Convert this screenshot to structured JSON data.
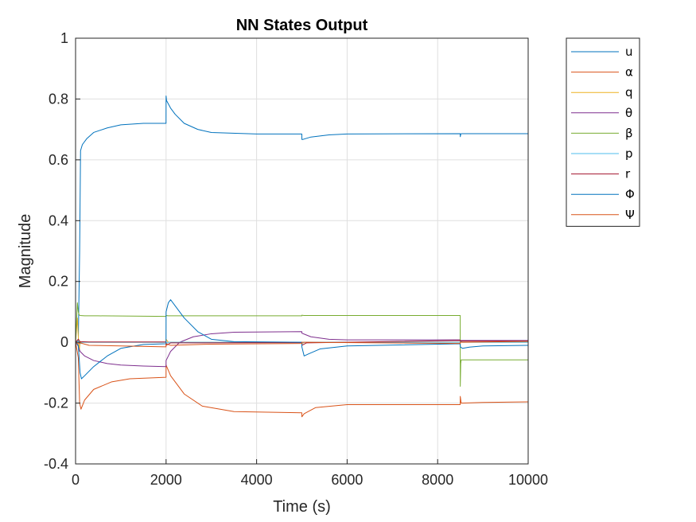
{
  "chart_data": {
    "type": "line",
    "title": "NN States Output",
    "xlabel": "Time (s)",
    "ylabel": "Magnitude",
    "xlim": [
      0,
      10000
    ],
    "ylim": [
      -0.4,
      1
    ],
    "xticks": [
      0,
      2000,
      4000,
      6000,
      8000,
      10000
    ],
    "xtick_labels": [
      "0",
      "2000",
      "4000",
      "6000",
      "8000",
      "10000"
    ],
    "yticks": [
      -0.4,
      -0.2,
      0,
      0.2,
      0.4,
      0.6,
      0.8,
      1
    ],
    "ytick_labels": [
      "-0.4",
      "-0.2",
      "0",
      "0.2",
      "0.4",
      "0.6",
      "0.8",
      "1"
    ],
    "grid": true,
    "legend_position": "outside-top-right",
    "series": [
      {
        "name": "u",
        "color": "#0072BD",
        "x": [
          0,
          60,
          90,
          110,
          150,
          250,
          400,
          700,
          1000,
          1500,
          1999,
          2000,
          2010,
          2100,
          2200,
          2400,
          2700,
          3000,
          4000,
          4999,
          5000,
          5020,
          5200,
          5600,
          6000,
          8499,
          8500,
          8510,
          8520,
          9000,
          10000
        ],
        "y": [
          0,
          0,
          0.3,
          0.63,
          0.65,
          0.67,
          0.69,
          0.705,
          0.715,
          0.72,
          0.72,
          0.81,
          0.795,
          0.77,
          0.75,
          0.72,
          0.7,
          0.69,
          0.685,
          0.685,
          0.667,
          0.667,
          0.675,
          0.682,
          0.685,
          0.686,
          0.676,
          0.684,
          0.686,
          0.686,
          0.686
        ]
      },
      {
        "name": "α",
        "color": "#D95319",
        "x": [
          0,
          60,
          90,
          120,
          200,
          400,
          800,
          1200,
          1999,
          2000,
          2100,
          2400,
          2800,
          3500,
          4999,
          5000,
          5050,
          5300,
          6000,
          8499,
          8500,
          8520,
          9000,
          10000
        ],
        "y": [
          0,
          -0.05,
          -0.2,
          -0.22,
          -0.19,
          -0.155,
          -0.13,
          -0.12,
          -0.115,
          -0.075,
          -0.11,
          -0.17,
          -0.21,
          -0.228,
          -0.232,
          -0.245,
          -0.235,
          -0.215,
          -0.205,
          -0.205,
          -0.178,
          -0.2,
          -0.198,
          -0.196
        ]
      },
      {
        "name": "q",
        "color": "#EDB120",
        "x": [
          0,
          40,
          60,
          80,
          100,
          200,
          1999,
          2000,
          2050,
          2200,
          4999,
          5000,
          5050,
          8499,
          8500,
          8550,
          10000
        ],
        "y": [
          0,
          0.08,
          0.02,
          -0.03,
          0,
          0,
          0,
          0.01,
          0,
          0,
          0,
          -0.005,
          0,
          0,
          0.003,
          0,
          0
        ]
      },
      {
        "name": "θ",
        "color": "#7E2F8E",
        "x": [
          0,
          50,
          100,
          200,
          400,
          700,
          1000,
          1500,
          1999,
          2000,
          2100,
          2300,
          2600,
          3000,
          3500,
          4999,
          5000,
          5200,
          5600,
          6000,
          8499,
          8500,
          10000
        ],
        "y": [
          0,
          -0.01,
          -0.03,
          -0.045,
          -0.06,
          -0.07,
          -0.075,
          -0.078,
          -0.08,
          -0.06,
          -0.03,
          0,
          0.018,
          0.028,
          0.033,
          0.035,
          0.03,
          0.018,
          0.01,
          0.008,
          0.008,
          0.006,
          0.006
        ]
      },
      {
        "name": "β",
        "color": "#77AC30",
        "x": [
          0,
          40,
          60,
          80,
          100,
          200,
          500,
          1999,
          2000,
          2050,
          4999,
          5000,
          5050,
          8499,
          8500,
          8510,
          8520,
          8600,
          10000
        ],
        "y": [
          0,
          0.13,
          0.1,
          0.09,
          0.088,
          0.087,
          0.087,
          0.085,
          0.088,
          0.087,
          0.087,
          0.089,
          0.088,
          0.088,
          -0.145,
          -0.07,
          -0.058,
          -0.058,
          -0.058
        ]
      },
      {
        "name": "p",
        "color": "#4DBEEE",
        "x": [
          0,
          60,
          100,
          150,
          500,
          1999,
          2000,
          2050,
          4999,
          5000,
          5050,
          8499,
          8500,
          8550,
          10000
        ],
        "y": [
          0,
          0.005,
          -0.005,
          0,
          0,
          0,
          -0.005,
          0,
          0,
          -0.003,
          0,
          0,
          0.002,
          0,
          0
        ]
      },
      {
        "name": "r",
        "color": "#A2142F",
        "x": [
          0,
          60,
          100,
          300,
          1999,
          2000,
          2100,
          4999,
          5000,
          5100,
          8499,
          8500,
          8600,
          10000
        ],
        "y": [
          0,
          0.01,
          0.002,
          0.001,
          0.001,
          -0.01,
          -0.002,
          -0.001,
          -0.01,
          -0.002,
          0.006,
          0.004,
          0.004,
          0.004
        ]
      },
      {
        "name": "Φ",
        "color": "#0072BD",
        "x": [
          0,
          60,
          100,
          130,
          200,
          400,
          700,
          1000,
          1500,
          1999,
          2000,
          2050,
          2100,
          2200,
          2400,
          2700,
          3000,
          3500,
          4999,
          5000,
          5050,
          5150,
          5400,
          6000,
          8499,
          8500,
          8550,
          8700,
          9000,
          10000
        ],
        "y": [
          0,
          -0.01,
          -0.1,
          -0.12,
          -0.11,
          -0.08,
          -0.045,
          -0.02,
          -0.007,
          -0.005,
          0.1,
          0.13,
          0.14,
          0.12,
          0.08,
          0.035,
          0.01,
          0.002,
          0,
          -0.015,
          -0.045,
          -0.038,
          -0.022,
          -0.012,
          -0.005,
          -0.015,
          -0.02,
          -0.016,
          -0.012,
          -0.01
        ]
      },
      {
        "name": "Ψ",
        "color": "#D95319",
        "x": [
          0,
          60,
          100,
          300,
          1999,
          2000,
          2100,
          3000,
          4999,
          5000,
          5100,
          8499,
          8500,
          10000
        ],
        "y": [
          0,
          -0.005,
          -0.002,
          -0.01,
          -0.015,
          -0.005,
          -0.01,
          -0.006,
          -0.004,
          0,
          0,
          -0.004,
          0,
          0.003
        ]
      }
    ]
  }
}
